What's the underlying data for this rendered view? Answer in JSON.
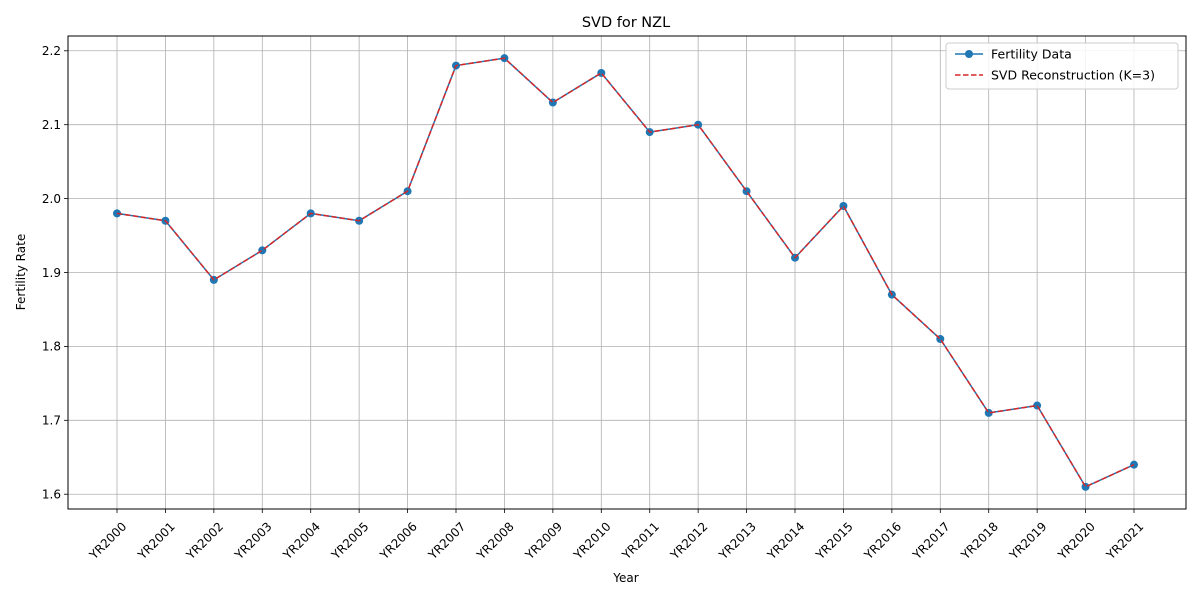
{
  "chart_data": {
    "type": "line",
    "title": "SVD for NZL",
    "xlabel": "Year",
    "ylabel": "Fertility Rate",
    "categories": [
      "YR2000",
      "YR2001",
      "YR2002",
      "YR2003",
      "YR2004",
      "YR2005",
      "YR2006",
      "YR2007",
      "YR2008",
      "YR2009",
      "YR2010",
      "YR2011",
      "YR2012",
      "YR2013",
      "YR2014",
      "YR2015",
      "YR2016",
      "YR2017",
      "YR2018",
      "YR2019",
      "YR2020",
      "YR2021"
    ],
    "ylim": [
      1.58,
      2.22
    ],
    "yticks": [
      1.6,
      1.7,
      1.8,
      1.9,
      2.0,
      2.1,
      2.2
    ],
    "ytick_labels": [
      "1.6",
      "1.7",
      "1.8",
      "1.9",
      "2.0",
      "2.1",
      "2.2"
    ],
    "grid": true,
    "legend_position": "top-right",
    "series": [
      {
        "name": "Fertility Data",
        "style": "solid line with circle markers",
        "color": "#1f77b4",
        "values": [
          1.98,
          1.97,
          1.89,
          1.93,
          1.98,
          1.97,
          2.01,
          2.18,
          2.19,
          2.13,
          2.17,
          2.09,
          2.1,
          2.01,
          1.92,
          1.99,
          1.87,
          1.81,
          1.71,
          1.72,
          1.61,
          1.64
        ]
      },
      {
        "name": "SVD Reconstruction (K=3)",
        "style": "dashed line",
        "color": "#d62728",
        "values": [
          1.98,
          1.97,
          1.89,
          1.93,
          1.98,
          1.97,
          2.01,
          2.18,
          2.19,
          2.13,
          2.17,
          2.09,
          2.1,
          2.01,
          1.92,
          1.99,
          1.87,
          1.81,
          1.71,
          1.72,
          1.61,
          1.64
        ]
      }
    ]
  }
}
